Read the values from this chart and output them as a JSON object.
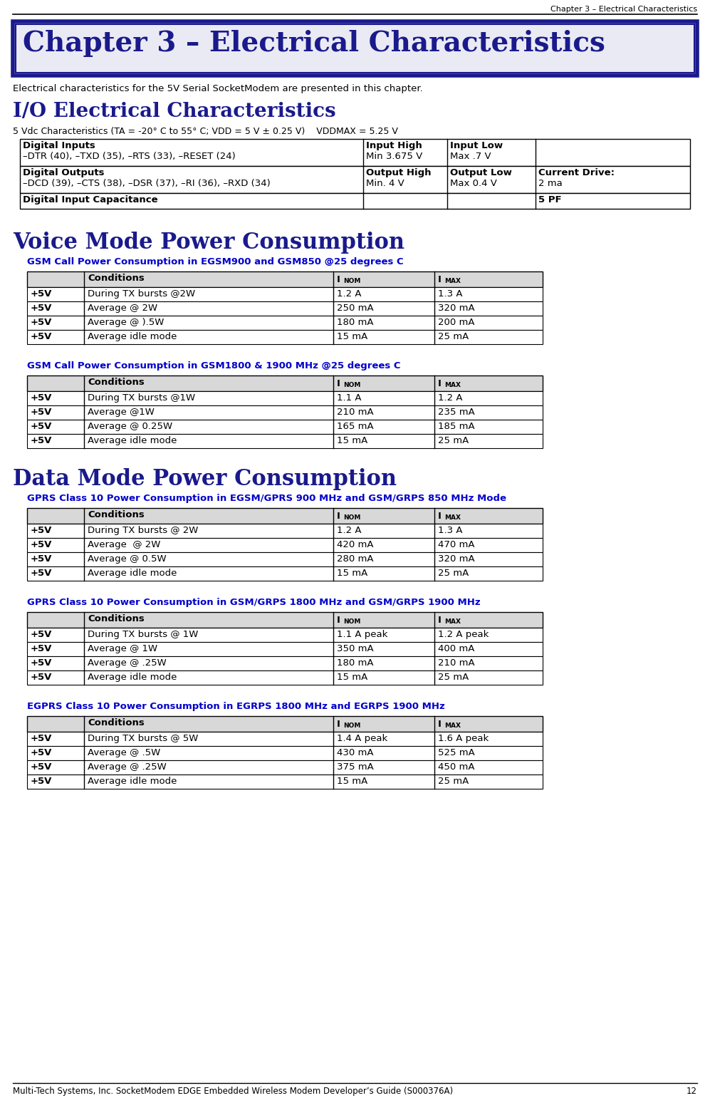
{
  "page_title": "Chapter 3 – Electrical Characteristics",
  "chapter_title": "Chapter 3 – Electrical Characteristics",
  "intro_text": "Electrical characteristics for the 5V Serial SocketModem are presented in this chapter.",
  "section1_title": "I/O Electrical Characteristics",
  "vdc_subtitle": "5 Vdc Characteristics (TA = -20° C to 55° C; VDD = 5 V ± 0.25 V)    VDDMAX = 5.25 V",
  "section2_title": "Voice Mode Power Consumption",
  "voice_tables": [
    {
      "title": "GSM Call Power Consumption in EGSM900 and GSM850 @25 degrees C",
      "rows": [
        [
          "+5V",
          "During TX bursts @2W",
          "1.2 A",
          "1.3 A"
        ],
        [
          "+5V",
          "Average @ 2W",
          "250 mA",
          "320 mA"
        ],
        [
          "+5V",
          "Average @ ).5W",
          "180 mA",
          "200 mA"
        ],
        [
          "+5V",
          "Average idle mode",
          "15 mA",
          "25 mA"
        ]
      ]
    },
    {
      "title": "GSM Call Power Consumption in GSM1800 & 1900 MHz @25 degrees C",
      "rows": [
        [
          "+5V",
          "During TX bursts @1W",
          "1.1 A",
          "1.2 A"
        ],
        [
          "+5V",
          "Average @1W",
          "210 mA",
          "235 mA"
        ],
        [
          "+5V",
          "Average @ 0.25W",
          "165 mA",
          "185 mA"
        ],
        [
          "+5V",
          "Average idle mode",
          "15 mA",
          "25 mA"
        ]
      ]
    }
  ],
  "section3_title": "Data Mode Power Consumption",
  "data_tables": [
    {
      "title": "GPRS Class 10 Power Consumption in EGSM/GPRS 900 MHz and GSM/GRPS 850 MHz Mode",
      "rows": [
        [
          "+5V",
          "During TX bursts @ 2W",
          "1.2 A",
          "1.3 A"
        ],
        [
          "+5V",
          "Average  @ 2W",
          "420 mA",
          "470 mA"
        ],
        [
          "+5V",
          "Average @ 0.5W",
          "280 mA",
          "320 mA"
        ],
        [
          "+5V",
          "Average idle mode",
          "15 mA",
          "25 mA"
        ]
      ]
    },
    {
      "title": "GPRS Class 10 Power Consumption in GSM/GRPS 1800 MHz and GSM/GRPS 1900 MHz",
      "rows": [
        [
          "+5V",
          "During TX bursts @ 1W",
          "1.1 A peak",
          "1.2 A peak"
        ],
        [
          "+5V",
          "Average @ 1W",
          "350 mA",
          "400 mA"
        ],
        [
          "+5V",
          "Average @ .25W",
          "180 mA",
          "210 mA"
        ],
        [
          "+5V",
          "Average idle mode",
          "15 mA",
          "25 mA"
        ]
      ]
    },
    {
      "title": "EGPRS Class 10 Power Consumption in EGRPS 1800 MHz and EGRPS 1900 MHz",
      "rows": [
        [
          "+5V",
          "During TX bursts @ 5W",
          "1.4 A peak",
          "1.6 A peak"
        ],
        [
          "+5V",
          "Average @ .5W",
          "430 mA",
          "525 mA"
        ],
        [
          "+5V",
          "Average @ .25W",
          "375 mA",
          "450 mA"
        ],
        [
          "+5V",
          "Average idle mode",
          "15 mA",
          "25 mA"
        ]
      ]
    }
  ],
  "dark_blue": "#1a1a8c",
  "medium_blue": "#0000cd",
  "table_header_bg": "#d8d8d8",
  "box_bg": "#eaeaf4",
  "box_border": "#1a1a8c"
}
